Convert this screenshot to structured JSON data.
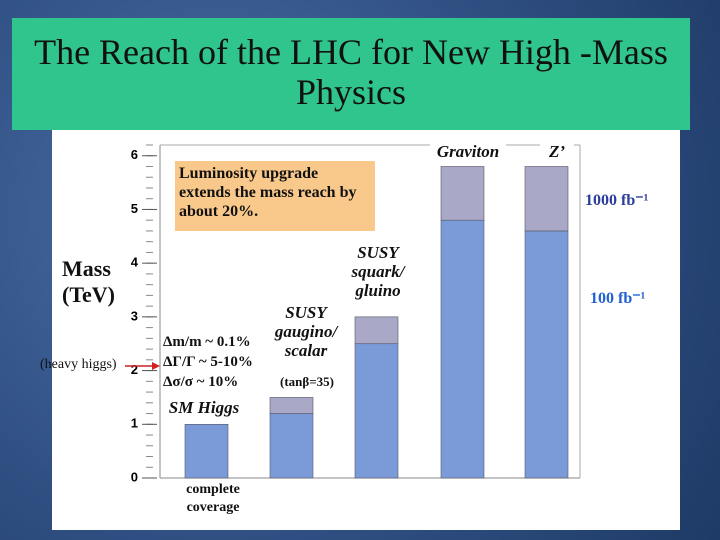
{
  "chart_data": {
    "type": "stacked_bar",
    "title": "The Reach of the LHC for New High -Mass Physics",
    "y_label": "Mass (TeV)",
    "categories": [
      "SM Higgs",
      "SUSY gaugino/ scalar",
      "SUSY squark/ gluino",
      "Graviton",
      "Z’"
    ],
    "series": [
      {
        "name": "100 fb⁻¹",
        "color": "#7b9bd8",
        "values": [
          1.0,
          1.2,
          2.5,
          4.8,
          4.6
        ]
      },
      {
        "name": "1000 fb⁻¹",
        "color": "#a9a8c6",
        "values": [
          null,
          0.3,
          0.5,
          1.0,
          1.2
        ]
      }
    ],
    "ylim": [
      0,
      6.2
    ],
    "yticks": [
      0,
      1,
      2,
      3,
      4,
      5,
      6
    ],
    "annotations": {
      "callout": "Luminosity upgrade extends the mass reach by about 20%.",
      "coverage": "complete coverage",
      "tanbeta": "(tanβ=35)",
      "heavy_higgs": "(heavy higgs)",
      "higgs_precision": [
        "Δm/m ~ 0.1%",
        "ΔΓ/Γ ~ 5-10%",
        "Δσ/σ ~ 10%"
      ]
    }
  }
}
